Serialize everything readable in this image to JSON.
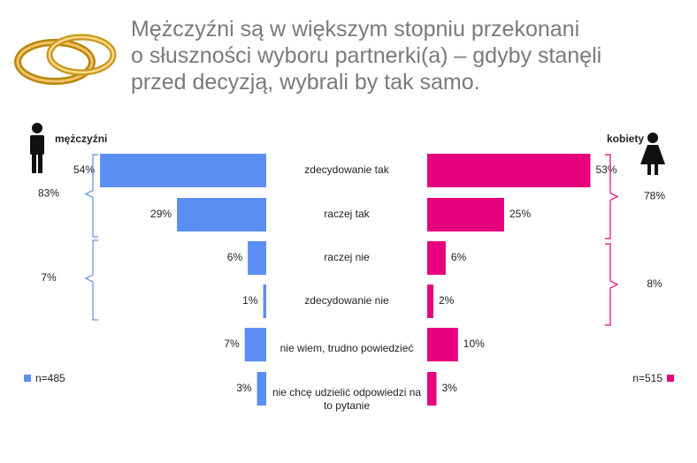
{
  "chart_data": {
    "type": "butterfly",
    "title": [
      "Mężczyźni są w większym stopniu przekonani",
      "o słuszności wyboru partnerki(a) – gdyby stanęli",
      "przed decyzją, wybrali by tak samo."
    ],
    "categories": [
      "zdecydowanie tak",
      "raczej tak",
      "raczej nie",
      "zdecydowanie nie",
      "nie wiem, trudno powiedzieć",
      "nie chcę udzielić odpowiedzi na to pytanie"
    ],
    "series": [
      {
        "name": "mężczyźni",
        "color": "#5b8ef2",
        "side": "left",
        "sample": "n=485",
        "values": [
          54,
          29,
          6,
          1,
          7,
          3
        ],
        "value_labels": [
          "54%",
          "29%",
          "6%",
          "1%",
          "7%",
          "3%"
        ],
        "summary": [
          {
            "value": 83,
            "label": "83%"
          },
          {
            "value": 7,
            "label": "7%"
          }
        ]
      },
      {
        "name": "kobiety",
        "color": "#e6007e",
        "side": "right",
        "sample": "n=515",
        "values": [
          53,
          25,
          6,
          2,
          10,
          3
        ],
        "value_labels": [
          "53%",
          "25%",
          "6%",
          "2%",
          "10%",
          "3%"
        ],
        "summary": [
          {
            "value": 78,
            "label": "78%"
          },
          {
            "value": 8,
            "label": "8%"
          }
        ]
      }
    ]
  }
}
